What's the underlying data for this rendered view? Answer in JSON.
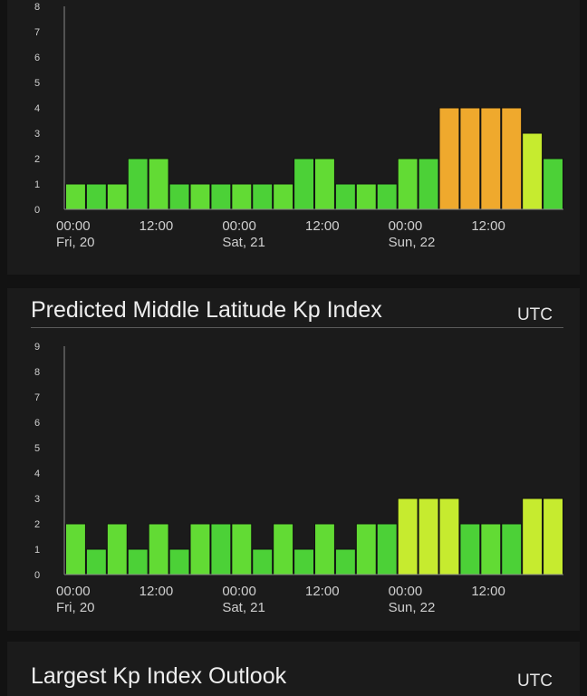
{
  "colors": {
    "bg": "#121212",
    "panel": "#1b1b1b",
    "green1": "#4cd137",
    "green2": "#62db34",
    "yellowgreen": "#c6eb2f",
    "orange": "#efa92d",
    "bar_outline": "#111111",
    "axis": "#8a8a8a"
  },
  "sections": {
    "middle": {
      "title": "Predicted Middle Latitude Kp Index",
      "utc": "UTC"
    },
    "outlook": {
      "title": "Largest Kp Index Outlook",
      "utc": "UTC"
    }
  },
  "chart_data": [
    {
      "type": "bar",
      "ylim": [
        0,
        8
      ],
      "yticks": [
        "0",
        "1",
        "2",
        "3",
        "4",
        "5",
        "6",
        "7",
        "8"
      ],
      "xtick_labels": [
        {
          "time": "00:00",
          "day": "Fri, 20"
        },
        {
          "time": "12:00",
          "day": ""
        },
        {
          "time": "00:00",
          "day": "Sat, 21"
        },
        {
          "time": "12:00",
          "day": ""
        },
        {
          "time": "00:00",
          "day": "Sun, 22"
        },
        {
          "time": "12:00",
          "day": ""
        }
      ],
      "values": [
        1,
        1,
        1,
        2,
        2,
        1,
        1,
        1,
        1,
        1,
        1,
        2,
        2,
        1,
        1,
        1,
        2,
        2,
        4,
        4,
        4,
        4,
        3,
        2
      ]
    },
    {
      "type": "bar",
      "ylim": [
        0,
        9
      ],
      "yticks": [
        "0",
        "1",
        "2",
        "3",
        "4",
        "5",
        "6",
        "7",
        "8",
        "9"
      ],
      "xtick_labels": [
        {
          "time": "00:00",
          "day": "Fri, 20"
        },
        {
          "time": "12:00",
          "day": ""
        },
        {
          "time": "00:00",
          "day": "Sat, 21"
        },
        {
          "time": "12:00",
          "day": ""
        },
        {
          "time": "00:00",
          "day": "Sun, 22"
        },
        {
          "time": "12:00",
          "day": ""
        }
      ],
      "values": [
        2,
        1,
        2,
        1,
        2,
        1,
        2,
        2,
        2,
        1,
        2,
        1,
        2,
        1,
        2,
        2,
        3,
        3,
        3,
        2,
        2,
        2,
        3,
        3
      ]
    }
  ]
}
